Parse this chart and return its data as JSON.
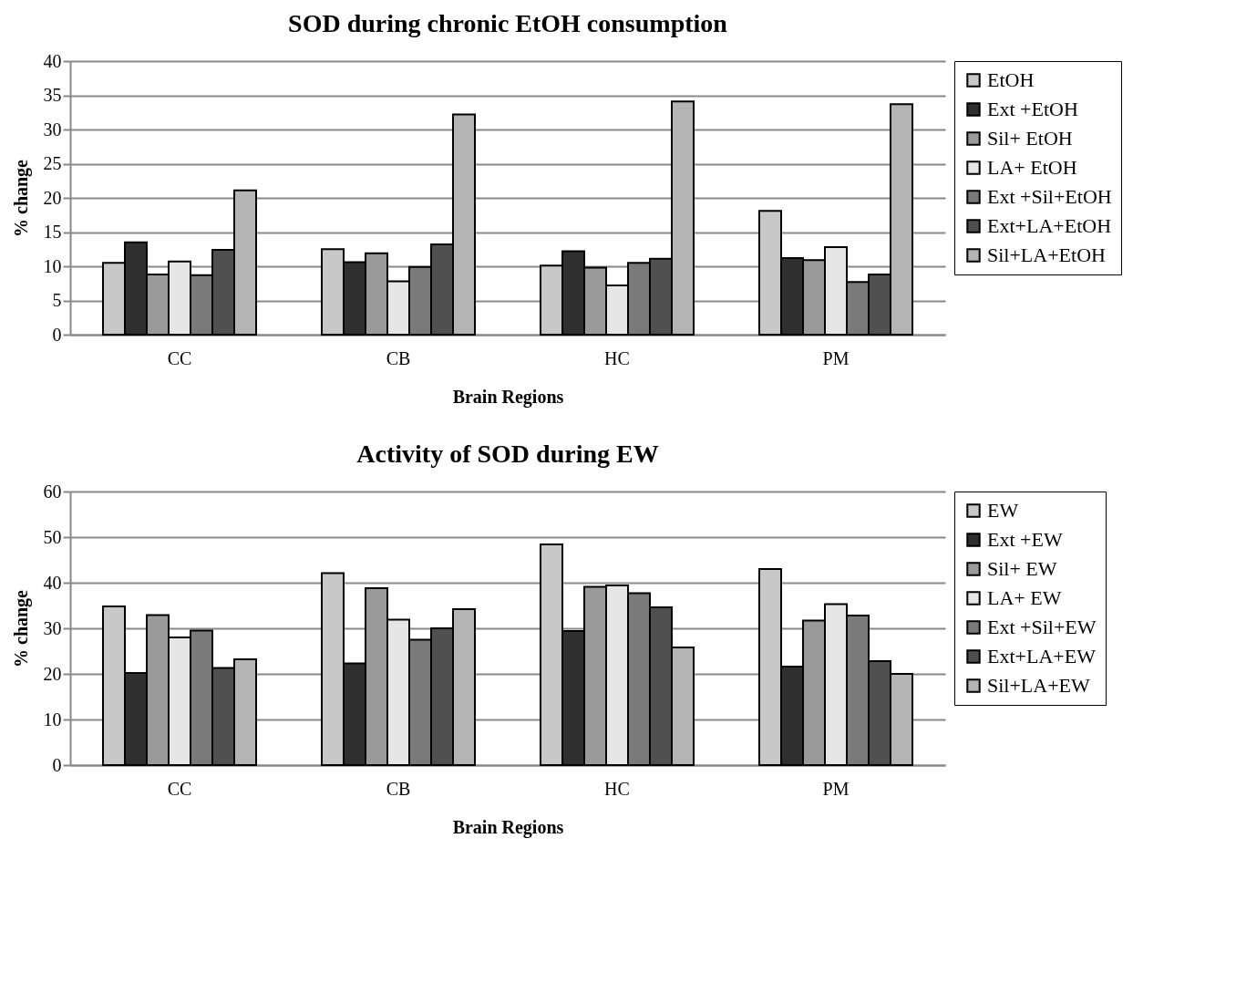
{
  "chart_data": [
    {
      "type": "bar",
      "title": "SOD during  chronic EtOH consumption",
      "xlabel": "Brain Regions",
      "ylabel": "% change",
      "categories": [
        "CC",
        "CB",
        "HC",
        "PM"
      ],
      "ylim": [
        0,
        40
      ],
      "yticks": [
        0,
        5,
        10,
        15,
        20,
        25,
        30,
        35,
        40
      ],
      "grid": "y",
      "legend": "right",
      "series": [
        {
          "name": "EtOH",
          "color": "#c8c8c8",
          "values": [
            10.5,
            12.5,
            10.1,
            18.1
          ]
        },
        {
          "name": "Ext +EtOH",
          "color": "#303030",
          "values": [
            13.5,
            10.6,
            12.2,
            11.2
          ]
        },
        {
          "name": "Sil+  EtOH",
          "color": "#9a9a9a",
          "values": [
            8.8,
            11.9,
            9.8,
            10.9
          ]
        },
        {
          "name": "LA+  EtOH",
          "color": "#e6e6e6",
          "values": [
            10.7,
            7.8,
            7.2,
            12.8
          ]
        },
        {
          "name": "Ext +Sil+EtOH",
          "color": "#7a7a7a",
          "values": [
            8.7,
            9.9,
            10.5,
            7.7
          ]
        },
        {
          "name": "Ext+LA+EtOH",
          "color": "#505050",
          "values": [
            12.4,
            13.2,
            11.1,
            8.8
          ]
        },
        {
          "name": "Sil+LA+EtOH",
          "color": "#b4b4b4",
          "values": [
            21.1,
            32.2,
            34.1,
            33.7
          ]
        }
      ]
    },
    {
      "type": "bar",
      "title": "Activity of SOD during  EW",
      "xlabel": "Brain Regions",
      "ylabel": "% change",
      "categories": [
        "CC",
        "CB",
        "HC",
        "PM"
      ],
      "ylim": [
        0,
        60
      ],
      "yticks": [
        0,
        10,
        20,
        30,
        40,
        50,
        60
      ],
      "grid": "y",
      "legend": "right",
      "series": [
        {
          "name": "EW",
          "color": "#c8c8c8",
          "values": [
            34.8,
            42.1,
            48.4,
            43.0
          ]
        },
        {
          "name": "Ext +EW",
          "color": "#303030",
          "values": [
            20.2,
            22.3,
            29.4,
            21.6
          ]
        },
        {
          "name": "Sil+  EW",
          "color": "#9a9a9a",
          "values": [
            32.9,
            38.8,
            39.1,
            31.7
          ]
        },
        {
          "name": "LA+  EW",
          "color": "#e6e6e6",
          "values": [
            28.0,
            31.9,
            39.4,
            35.3
          ]
        },
        {
          "name": "Ext +Sil+EW",
          "color": "#7a7a7a",
          "values": [
            29.5,
            27.5,
            37.7,
            32.8
          ]
        },
        {
          "name": "Ext+LA+EW",
          "color": "#505050",
          "values": [
            21.3,
            30.0,
            34.6,
            22.8
          ]
        },
        {
          "name": "Sil+LA+EW",
          "color": "#b4b4b4",
          "values": [
            23.2,
            34.2,
            25.8,
            20.0
          ]
        }
      ]
    }
  ]
}
